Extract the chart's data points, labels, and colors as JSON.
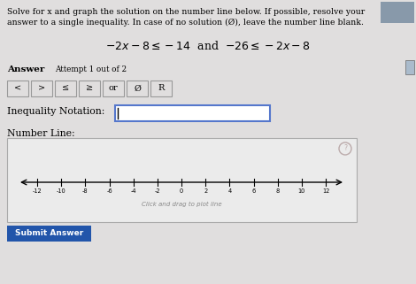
{
  "bg_color": "#e0dede",
  "title_line1": "Solve for x and graph the solution on the number line below. If possible, resolve your",
  "title_line2": "answer to a single inequality. In case of no solution (Ø), leave the number line blank.",
  "equation": "$-2x - 8 \\leq -14$  and  $-26 \\leq -2x - 8$",
  "answer_label": "Answer",
  "attempt_text": "Attempt 1 out of 2",
  "buttons": [
    "<",
    ">",
    "≤",
    "≥",
    "or",
    "Ø",
    "R"
  ],
  "inequality_label": "Inequality Notation:",
  "numberline_label": "Number Line:",
  "numberline_ticks": [
    -12,
    -10,
    -8,
    -6,
    -4,
    -2,
    0,
    2,
    4,
    6,
    8,
    10,
    12
  ],
  "click_drag_text": "Click and drag to plot line",
  "submit_text": "Submit Answer",
  "submit_bg": "#2255aa",
  "input_box_border": "#5577cc",
  "numberline_box_bg": "#ebebeb",
  "box_bg": "#e8e6e6",
  "btn_bg": "#e0dede",
  "corner_box_color": "#8899aa"
}
